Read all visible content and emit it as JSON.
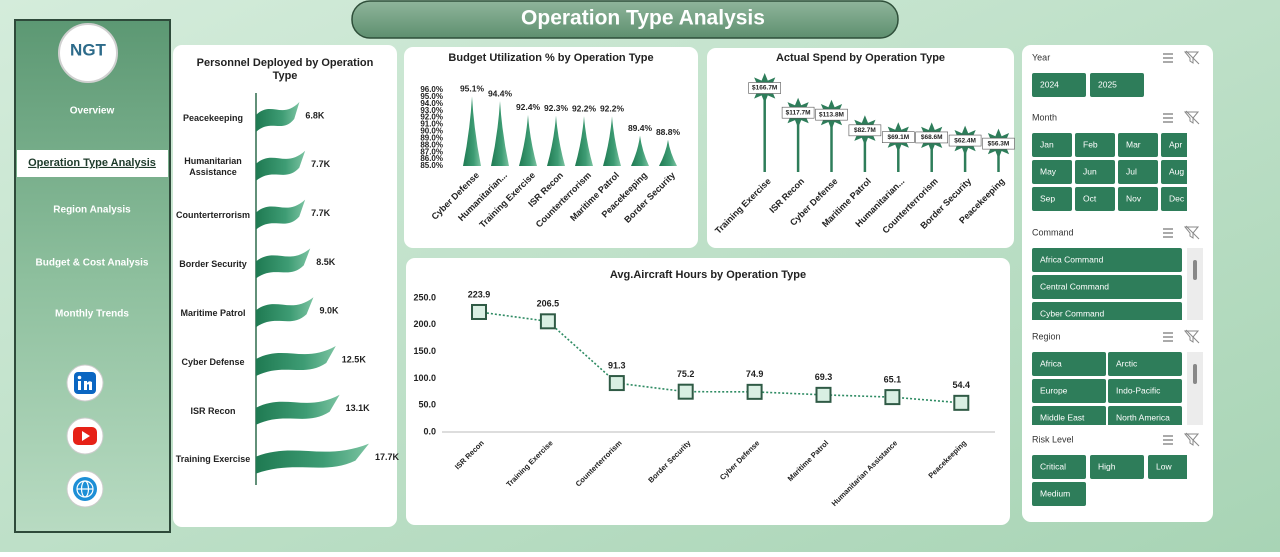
{
  "header": {
    "title": "Operation Type Analysis"
  },
  "logo": "NGT",
  "nav": {
    "items": [
      "Overview",
      "Operation Type Analysis",
      "Region Analysis",
      "Budget & Cost Analysis",
      "Monthly Trends"
    ],
    "active": 1
  },
  "chart_data": [
    {
      "type": "bar",
      "title": "Personnel Deployed by Operation Type",
      "categories": [
        "Peacekeeping",
        "Humanitarian Assistance",
        "Counterterrorism",
        "Border Security",
        "Maritime Patrol",
        "Cyber Defense",
        "ISR Recon",
        "Training Exercise"
      ],
      "values": [
        6.8,
        7.7,
        7.7,
        8.5,
        9.0,
        12.5,
        13.1,
        17.7
      ],
      "value_labels": [
        "6.8K",
        "7.7K",
        "7.7K",
        "8.5K",
        "9.0K",
        "12.5K",
        "13.1K",
        "17.7K"
      ],
      "color": "#2e8b63"
    },
    {
      "type": "cone",
      "title": "Budget Utilization % by Operation Type",
      "categories": [
        "Cyber Defense",
        "Humanitarian...",
        "Training Exercise",
        "ISR Recon",
        "Counterterrorism",
        "Maritime Patrol",
        "Peacekeeping",
        "Border Security"
      ],
      "values": [
        95.1,
        94.4,
        92.4,
        92.3,
        92.2,
        92.2,
        89.4,
        88.8
      ],
      "value_labels": [
        "95.1%",
        "94.4%",
        "92.4%",
        "92.3%",
        "92.2%",
        "92.2%",
        "89.4%",
        "88.8%"
      ],
      "ylim": [
        85,
        96
      ],
      "yticks": [
        {
          "value": 85,
          "label": "85.0%"
        },
        {
          "value": 86,
          "label": "86.0%"
        },
        {
          "value": 87,
          "label": "87.0%"
        },
        {
          "value": 88,
          "label": "88.0%"
        },
        {
          "value": 89,
          "label": "89.0%"
        },
        {
          "value": 90,
          "label": "90.0%"
        },
        {
          "value": 91,
          "label": "91.0%"
        },
        {
          "value": 92,
          "label": "92.0%"
        },
        {
          "value": 93,
          "label": "93.0%"
        },
        {
          "value": 94,
          "label": "94.0%"
        },
        {
          "value": 95,
          "label": "95.0%"
        },
        {
          "value": 96,
          "label": "96.0%"
        }
      ],
      "color": "#2e8b63"
    },
    {
      "type": "lollipop",
      "title": "Actual Spend by Operation Type",
      "categories": [
        "Training Exercise",
        "ISR Recon",
        "Cyber Defense",
        "Maritime Patrol",
        "Humanitarian...",
        "Counterterrorism",
        "Border Security",
        "Peacekeeping"
      ],
      "values": [
        166.7,
        117.7,
        113.8,
        82.7,
        69.1,
        68.6,
        62.4,
        56.3
      ],
      "value_labels": [
        "$166.7M",
        "$117.7M",
        "$113.8M",
        "$82.7M",
        "$69.1M",
        "$68.6M",
        "$62.4M",
        "$56.3M"
      ],
      "color": "#2e7d5a"
    },
    {
      "type": "line",
      "title": "Avg.Aircraft Hours by Operation Type",
      "categories": [
        "ISR Recon",
        "Training Exercise",
        "Counterterrorism",
        "Border Security",
        "Cyber Defense",
        "Maritime Patrol",
        "Humanitarian Assistance",
        "Peacekeeping"
      ],
      "values": [
        223.9,
        206.5,
        91.3,
        75.2,
        74.9,
        69.3,
        65.1,
        54.4
      ],
      "ylim": [
        0,
        250
      ],
      "yticks": [
        {
          "value": 0,
          "label": "0.0"
        },
        {
          "value": 50,
          "label": "50.0"
        },
        {
          "value": 100,
          "label": "100.0"
        },
        {
          "value": 150,
          "label": "150.0"
        },
        {
          "value": 200,
          "label": "200.0"
        },
        {
          "value": 250,
          "label": "250.0"
        }
      ],
      "color": "#2e8b63"
    }
  ],
  "slicers": [
    {
      "title": "Year",
      "items": [
        "2024",
        "2025"
      ]
    },
    {
      "title": "Month",
      "items": [
        "Jan",
        "Feb",
        "Mar",
        "Apr",
        "May",
        "Jun",
        "Jul",
        "Aug",
        "Sep",
        "Oct",
        "Nov",
        "Dec"
      ]
    },
    {
      "title": "Command",
      "items": [
        "Africa Command",
        "Central Command",
        "Cyber Command"
      ]
    },
    {
      "title": "Region",
      "items": [
        "Africa",
        "Arctic",
        "Europe",
        "Indo-Pacific",
        "Middle East",
        "North America"
      ]
    },
    {
      "title": "Risk Level",
      "items": [
        "Critical",
        "High",
        "Low",
        "Medium"
      ]
    }
  ]
}
